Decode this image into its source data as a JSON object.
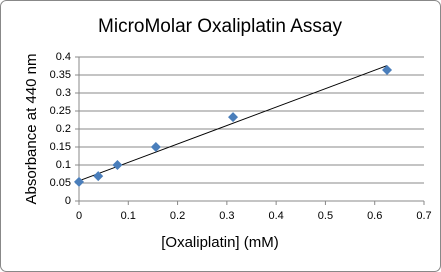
{
  "chart_data": {
    "type": "scatter",
    "title": "MicroMolar Oxaliplatin Assay",
    "x_label": "[Oxaliplatin] (mM)",
    "y_label": "Absorbance at 440 nm",
    "x": [
      0,
      0.039,
      0.078,
      0.156,
      0.3125,
      0.625
    ],
    "series": [
      {
        "color": "#4a7ebb",
        "values": [
          0.053,
          0.069,
          0.1,
          0.15,
          0.233,
          0.364
        ]
      }
    ],
    "trendline": {
      "color": "#000000",
      "x": [
        0,
        0.625
      ],
      "values": [
        0.056,
        0.376
      ]
    },
    "xlim": [
      0,
      0.7
    ],
    "xticks": [
      0,
      0.1,
      0.2,
      0.3,
      0.4,
      0.5,
      0.6,
      0.7
    ],
    "ylim": [
      0,
      0.4
    ],
    "yticks": [
      0,
      0.05,
      0.1,
      0.15,
      0.2,
      0.25,
      0.3,
      0.35,
      0.4
    ],
    "grid": true
  }
}
